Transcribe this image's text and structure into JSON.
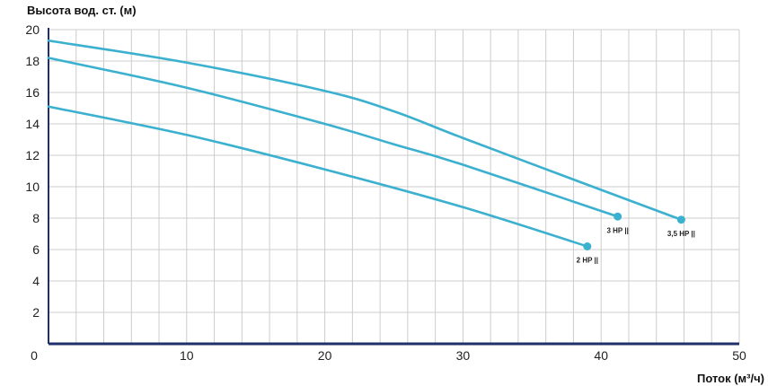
{
  "chart_data": {
    "type": "line",
    "title": "",
    "ylabel": "Высота вод. ст. (м)",
    "xlabel": "Поток (м³/ч)",
    "xlim": [
      0,
      50
    ],
    "ylim": [
      0,
      20
    ],
    "x_ticks": [
      0,
      10,
      20,
      30,
      40,
      50
    ],
    "y_ticks": [
      2,
      4,
      6,
      8,
      10,
      12,
      14,
      16,
      18,
      20
    ],
    "grid": true,
    "colors": {
      "line": "#3bb0cf",
      "grid": "#cccccc",
      "axis": "#1f2f6e",
      "text": "#222222"
    },
    "series": [
      {
        "name": "2 HP",
        "x": [
          0,
          10,
          20,
          30,
          39
        ],
        "y": [
          15.1,
          13.3,
          11.1,
          8.7,
          6.2
        ]
      },
      {
        "name": "3 HP",
        "x": [
          0,
          10,
          20,
          25,
          30,
          41.2
        ],
        "y": [
          18.2,
          16.3,
          14.0,
          12.7,
          11.4,
          8.1
        ]
      },
      {
        "name": "3,5 HP",
        "x": [
          0,
          10,
          20,
          25,
          30,
          40,
          45.8
        ],
        "y": [
          19.3,
          17.9,
          16.1,
          14.8,
          13.1,
          9.8,
          7.9
        ]
      }
    ],
    "point_labels": [
      {
        "series": "2 HP",
        "text": "2 HP ||"
      },
      {
        "series": "3 HP",
        "text": "3 HP ||"
      },
      {
        "series": "3,5 HP",
        "text": "3,5 HP ||"
      }
    ]
  }
}
